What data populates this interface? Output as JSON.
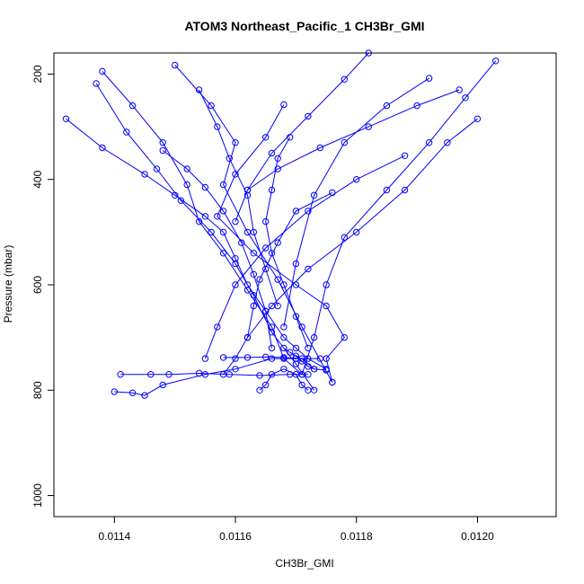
{
  "chart_data": {
    "type": "line",
    "title": "ATOM3 Northeast_Pacific_1 CH3Br_GMI",
    "xlabel": "CH3Br_GMI",
    "ylabel": "Pressure (mbar)",
    "xlim": [
      0.0113,
      0.01213
    ],
    "ylim": [
      1040,
      160
    ],
    "y_reversed": true,
    "x_ticks": [
      0.0114,
      0.0116,
      0.0118,
      0.012
    ],
    "x_tick_labels": [
      "0.0114",
      "0.0116",
      "0.0118",
      "0.0120"
    ],
    "y_ticks": [
      200,
      400,
      600,
      800,
      1000
    ],
    "y_tick_labels": [
      "200",
      "400",
      "600",
      "800",
      "1000"
    ],
    "grid": false,
    "legend": "none",
    "marker": "open-circle",
    "color": "#0000ff",
    "series": [
      {
        "x": [
          0.01132,
          0.01138,
          0.01145,
          0.0115,
          0.01155,
          0.01158,
          0.0116,
          0.01162,
          0.01165,
          0.01168,
          0.0117,
          0.01172,
          0.01175
        ],
        "y": [
          285,
          340,
          390,
          430,
          470,
          500,
          550,
          600,
          650,
          700,
          720,
          740,
          760
        ]
      },
      {
        "x": [
          0.01138,
          0.01143,
          0.01148,
          0.01152,
          0.01154,
          0.01158,
          0.01162,
          0.01166,
          0.01168,
          0.01171
        ],
        "y": [
          195,
          260,
          330,
          410,
          480,
          540,
          610,
          680,
          740,
          770
        ]
      },
      {
        "x": [
          0.01137,
          0.01142,
          0.01147,
          0.01151,
          0.01156,
          0.0116,
          0.01163,
          0.01166,
          0.0117,
          0.01173
        ],
        "y": [
          218,
          310,
          380,
          440,
          500,
          560,
          620,
          690,
          750,
          800
        ]
      },
      {
        "x": [
          0.012,
          0.01195,
          0.01188,
          0.0118,
          0.01172,
          0.01166,
          0.01162,
          0.0116,
          0.01158
        ],
        "y": [
          285,
          330,
          420,
          500,
          570,
          640,
          700,
          740,
          770
        ]
      },
      {
        "x": [
          0.01203,
          0.01198,
          0.01192,
          0.01185,
          0.01178,
          0.01175,
          0.01173,
          0.01171
        ],
        "y": [
          175,
          245,
          330,
          420,
          510,
          600,
          700,
          770
        ]
      },
      {
        "x": [
          0.01188,
          0.0118,
          0.01172,
          0.01165,
          0.0116,
          0.01157,
          0.01155
        ],
        "y": [
          355,
          400,
          460,
          530,
          600,
          680,
          740
        ]
      },
      {
        "x": [
          0.01192,
          0.01185,
          0.01178,
          0.01173,
          0.0117,
          0.01168
        ],
        "y": [
          208,
          260,
          330,
          430,
          560,
          680
        ]
      },
      {
        "x": [
          0.01168,
          0.01165,
          0.0116,
          0.01157,
          0.01163,
          0.0117,
          0.01175,
          0.01178,
          0.01175,
          0.01176
        ],
        "y": [
          258,
          320,
          390,
          470,
          540,
          600,
          640,
          700,
          740,
          785
        ]
      },
      {
        "x": [
          0.0115,
          0.01156,
          0.0116,
          0.01158,
          0.01162,
          0.01167,
          0.01171,
          0.01176
        ],
        "y": [
          183,
          260,
          330,
          410,
          500,
          590,
          680,
          785
        ]
      },
      {
        "x": [
          0.01141,
          0.01146,
          0.01149,
          0.01154,
          0.01159,
          0.01164,
          0.01169,
          0.01172
        ],
        "y": [
          770,
          770,
          770,
          768,
          770,
          772,
          770,
          770
        ]
      },
      {
        "x": [
          0.0114,
          0.01143,
          0.01145,
          0.01148,
          0.01155,
          0.0116,
          0.01166,
          0.0117,
          0.01174
        ],
        "y": [
          803,
          805,
          810,
          790,
          770,
          760,
          740,
          740,
          740
        ]
      },
      {
        "x": [
          0.01158,
          0.01162,
          0.01165,
          0.01168,
          0.01171,
          0.01173,
          0.01175
        ],
        "y": [
          738,
          738,
          737,
          738,
          740,
          760,
          762
        ]
      },
      {
        "x": [
          0.01168,
          0.01169,
          0.0117,
          0.01171,
          0.01172,
          0.01173
        ],
        "y": [
          720,
          728,
          735,
          745,
          755,
          760
        ]
      },
      {
        "x": [
          0.01164,
          0.01165,
          0.01166,
          0.01168,
          0.0117,
          0.01171,
          0.01172
        ],
        "y": [
          800,
          790,
          770,
          760,
          770,
          790,
          800
        ]
      },
      {
        "x": [
          0.01182,
          0.01178,
          0.01172,
          0.01166,
          0.01162,
          0.0116
        ],
        "y": [
          160,
          210,
          280,
          350,
          420,
          480
        ]
      },
      {
        "x": [
          0.01197,
          0.0119,
          0.01182,
          0.01174,
          0.01167,
          0.01162
        ],
        "y": [
          230,
          260,
          300,
          340,
          380,
          420
        ]
      },
      {
        "x": [
          0.01148,
          0.01152,
          0.01155,
          0.01158,
          0.01161,
          0.01163,
          0.01165,
          0.01166
        ],
        "y": [
          345,
          380,
          415,
          460,
          520,
          580,
          650,
          720
        ]
      },
      {
        "x": [
          0.01154,
          0.01157,
          0.01159,
          0.01162,
          0.01163,
          0.01165,
          0.01167
        ],
        "y": [
          230,
          300,
          360,
          430,
          500,
          570,
          640
        ]
      },
      {
        "x": [
          0.01169,
          0.01167,
          0.01166,
          0.01165,
          0.01166,
          0.01168,
          0.0117,
          0.01172
        ],
        "y": [
          320,
          360,
          420,
          480,
          540,
          600,
          660,
          720
        ]
      },
      {
        "x": [
          0.01176,
          0.0117,
          0.01167,
          0.01164,
          0.01163,
          0.01162
        ],
        "y": [
          425,
          460,
          520,
          590,
          640,
          700
        ]
      }
    ]
  }
}
